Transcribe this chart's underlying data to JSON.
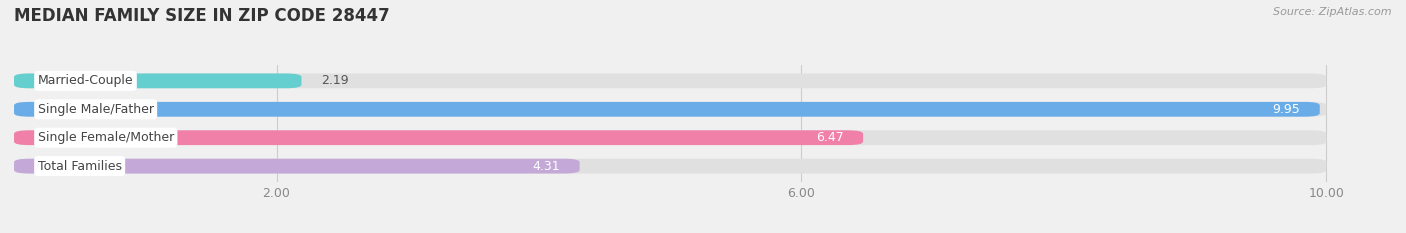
{
  "title": "MEDIAN FAMILY SIZE IN ZIP CODE 28447",
  "source": "Source: ZipAtlas.com",
  "categories": [
    "Married-Couple",
    "Single Male/Father",
    "Single Female/Mother",
    "Total Families"
  ],
  "values": [
    2.19,
    9.95,
    6.47,
    4.31
  ],
  "bar_colors": [
    "#65cece",
    "#6aace8",
    "#f080a8",
    "#c4a8d8"
  ],
  "background_color": "#f0f0f0",
  "bar_bg_color": "#e0e0e0",
  "xlim_min": 0.0,
  "xlim_max": 10.5,
  "xstart": 0.0,
  "xend": 10.0,
  "xticks": [
    2.0,
    6.0,
    10.0
  ],
  "xtick_labels": [
    "2.00",
    "6.00",
    "10.00"
  ],
  "value_inside_threshold": 3.0,
  "title_fontsize": 12,
  "source_fontsize": 8,
  "bar_height": 0.52,
  "label_fontsize": 9,
  "value_fontsize": 9
}
